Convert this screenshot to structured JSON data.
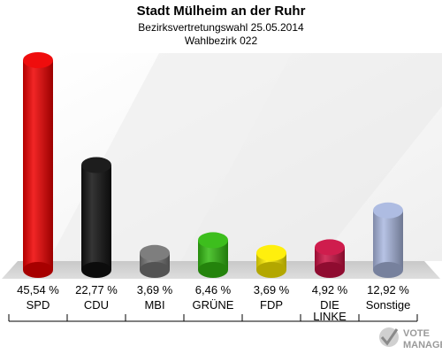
{
  "chart_data": {
    "type": "bar",
    "title": "Stadt Mülheim an der Ruhr",
    "subtitle": [
      "Bezirksvertretungswahl 25.05.2014",
      "Wahlbezirk 022"
    ],
    "categories": [
      "SPD",
      "CDU",
      "MBI",
      "GRÜNE",
      "FDP",
      "DIE LINKE",
      "Sonstige"
    ],
    "category_lines": [
      [
        "SPD"
      ],
      [
        "CDU"
      ],
      [
        "MBI"
      ],
      [
        "GRÜNE"
      ],
      [
        "FDP"
      ],
      [
        "DIE",
        "LINKE"
      ],
      [
        "Sonstige"
      ]
    ],
    "values": [
      45.54,
      22.77,
      3.69,
      6.46,
      3.69,
      4.92,
      12.92
    ],
    "value_labels": [
      "45,54 %",
      "22,77 %",
      "3,69 %",
      "6,46 %",
      "3,69 %",
      "4,92 %",
      "12,92 %"
    ],
    "colors": [
      "#ee0000",
      "#111111",
      "#777777",
      "#33bb11",
      "#ffee00",
      "#cc1144",
      "#aab8e0"
    ],
    "ylim": [
      0,
      45.54
    ],
    "grid": false,
    "legend": "none"
  },
  "logo": {
    "line1": "VOTE",
    "line2": "MANAGER"
  }
}
